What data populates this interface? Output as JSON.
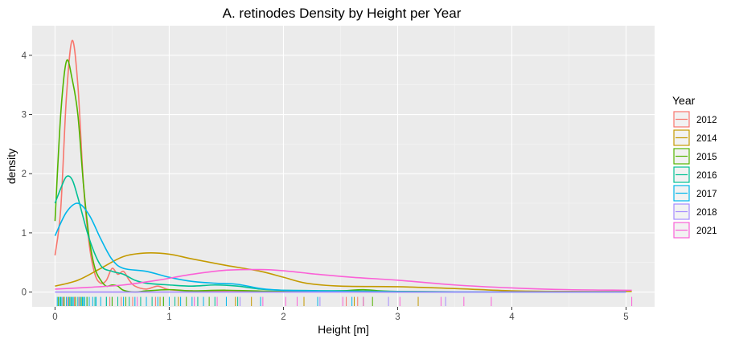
{
  "chart_data": {
    "type": "line",
    "title": "A. retinodes Density by Height per Year",
    "xlabel": "Height [m]",
    "ylabel": "density",
    "xlim": [
      -0.2,
      5.25
    ],
    "ylim": [
      -0.25,
      4.5
    ],
    "x_ticks": [
      0,
      1,
      2,
      3,
      4,
      5
    ],
    "y_ticks": [
      0,
      1,
      2,
      3,
      4
    ],
    "x_tick_labels": [
      "0",
      "1",
      "2",
      "3",
      "4",
      "5"
    ],
    "y_tick_labels": [
      "0",
      "1",
      "2",
      "3",
      "4"
    ],
    "grid": true,
    "legend": {
      "title": "Year",
      "placement": "right"
    },
    "series": [
      {
        "name": "2012",
        "color": "#F8766D",
        "points": [
          [
            0.0,
            0.62
          ],
          [
            0.05,
            1.4
          ],
          [
            0.1,
            3.3
          ],
          [
            0.15,
            4.25
          ],
          [
            0.2,
            3.5
          ],
          [
            0.25,
            1.8
          ],
          [
            0.3,
            0.8
          ],
          [
            0.35,
            0.3
          ],
          [
            0.4,
            0.15
          ],
          [
            0.45,
            0.2
          ],
          [
            0.5,
            0.4
          ],
          [
            0.55,
            0.3
          ],
          [
            0.6,
            0.35
          ],
          [
            0.65,
            0.2
          ],
          [
            0.7,
            0.1
          ],
          [
            0.8,
            0.05
          ],
          [
            0.9,
            0.1
          ],
          [
            1.0,
            0.04
          ],
          [
            1.2,
            0.02
          ],
          [
            1.5,
            0.01
          ],
          [
            2.0,
            0.01
          ],
          [
            3.0,
            0.0
          ],
          [
            4.0,
            0.0
          ],
          [
            5.0,
            0.0
          ]
        ]
      },
      {
        "name": "2014",
        "color": "#C49A00",
        "points": [
          [
            0.0,
            0.1
          ],
          [
            0.2,
            0.2
          ],
          [
            0.4,
            0.4
          ],
          [
            0.6,
            0.6
          ],
          [
            0.8,
            0.66
          ],
          [
            1.0,
            0.64
          ],
          [
            1.2,
            0.56
          ],
          [
            1.5,
            0.45
          ],
          [
            1.8,
            0.35
          ],
          [
            2.0,
            0.25
          ],
          [
            2.2,
            0.15
          ],
          [
            2.5,
            0.1
          ],
          [
            3.0,
            0.09
          ],
          [
            3.5,
            0.06
          ],
          [
            4.0,
            0.02
          ],
          [
            4.5,
            0.01
          ],
          [
            5.05,
            0.01
          ]
        ]
      },
      {
        "name": "2015",
        "color": "#53B400",
        "points": [
          [
            0.0,
            1.2
          ],
          [
            0.05,
            3.0
          ],
          [
            0.1,
            3.9
          ],
          [
            0.15,
            3.6
          ],
          [
            0.2,
            3.0
          ],
          [
            0.25,
            1.8
          ],
          [
            0.3,
            0.9
          ],
          [
            0.35,
            0.4
          ],
          [
            0.4,
            0.2
          ],
          [
            0.45,
            0.1
          ],
          [
            0.5,
            0.12
          ],
          [
            0.55,
            0.1
          ],
          [
            0.6,
            0.03
          ],
          [
            0.7,
            0.0
          ],
          [
            0.8,
            0.02
          ],
          [
            1.0,
            0.04
          ],
          [
            1.2,
            0.02
          ],
          [
            1.5,
            0.03
          ],
          [
            2.0,
            0.01
          ],
          [
            2.5,
            0.02
          ],
          [
            2.7,
            0.04
          ],
          [
            3.0,
            0.01
          ],
          [
            4.0,
            0.0
          ],
          [
            5.0,
            0.0
          ]
        ]
      },
      {
        "name": "2016",
        "color": "#00C094",
        "points": [
          [
            0.0,
            1.5
          ],
          [
            0.05,
            1.75
          ],
          [
            0.1,
            1.95
          ],
          [
            0.15,
            1.9
          ],
          [
            0.2,
            1.6
          ],
          [
            0.3,
            0.9
          ],
          [
            0.4,
            0.45
          ],
          [
            0.5,
            0.35
          ],
          [
            0.6,
            0.3
          ],
          [
            0.7,
            0.2
          ],
          [
            0.8,
            0.15
          ],
          [
            1.0,
            0.12
          ],
          [
            1.2,
            0.1
          ],
          [
            1.4,
            0.12
          ],
          [
            1.6,
            0.1
          ],
          [
            1.8,
            0.05
          ],
          [
            2.0,
            0.03
          ],
          [
            2.5,
            0.02
          ],
          [
            3.0,
            0.01
          ],
          [
            4.0,
            0.0
          ],
          [
            5.0,
            0.0
          ]
        ]
      },
      {
        "name": "2017",
        "color": "#00B6EB",
        "points": [
          [
            0.0,
            0.95
          ],
          [
            0.1,
            1.35
          ],
          [
            0.2,
            1.5
          ],
          [
            0.3,
            1.3
          ],
          [
            0.4,
            0.9
          ],
          [
            0.5,
            0.55
          ],
          [
            0.6,
            0.4
          ],
          [
            0.8,
            0.35
          ],
          [
            1.0,
            0.25
          ],
          [
            1.2,
            0.18
          ],
          [
            1.4,
            0.15
          ],
          [
            1.6,
            0.13
          ],
          [
            1.8,
            0.06
          ],
          [
            2.0,
            0.03
          ],
          [
            2.5,
            0.01
          ],
          [
            3.0,
            0.0
          ],
          [
            4.0,
            0.0
          ],
          [
            5.0,
            0.0
          ]
        ]
      },
      {
        "name": "2018",
        "color": "#A58AFF",
        "points": [
          [
            0.0,
            0.0
          ],
          [
            1.0,
            0.0
          ],
          [
            2.0,
            0.0
          ],
          [
            3.0,
            0.0
          ],
          [
            4.0,
            0.0
          ],
          [
            5.0,
            0.0
          ]
        ]
      },
      {
        "name": "2021",
        "color": "#FB61D7",
        "points": [
          [
            0.0,
            0.05
          ],
          [
            0.3,
            0.08
          ],
          [
            0.6,
            0.12
          ],
          [
            0.9,
            0.2
          ],
          [
            1.2,
            0.3
          ],
          [
            1.5,
            0.37
          ],
          [
            1.8,
            0.38
          ],
          [
            2.0,
            0.36
          ],
          [
            2.3,
            0.3
          ],
          [
            2.6,
            0.25
          ],
          [
            3.0,
            0.2
          ],
          [
            3.5,
            0.12
          ],
          [
            4.0,
            0.07
          ],
          [
            4.5,
            0.04
          ],
          [
            5.05,
            0.03
          ]
        ]
      }
    ],
    "rug": [
      {
        "series": "2017",
        "x": [
          0.02,
          0.04,
          0.06,
          0.08,
          0.1,
          0.12,
          0.14,
          0.16,
          0.18,
          0.2,
          0.22,
          0.24,
          0.26,
          0.28,
          0.3,
          0.33,
          0.36,
          0.4,
          0.45,
          0.5,
          0.55,
          0.6,
          0.7,
          0.8,
          0.9,
          1.0,
          1.1,
          1.2,
          1.3,
          1.5,
          1.8,
          2.3,
          2.6
        ]
      },
      {
        "series": "2016",
        "x": [
          0.05,
          0.15,
          0.25,
          0.35,
          0.45,
          0.55,
          0.65,
          0.75,
          0.85,
          0.95,
          1.05,
          1.25,
          1.4,
          1.6
        ]
      },
      {
        "series": "2015",
        "x": [
          0.03,
          0.08,
          0.13,
          0.18,
          0.23,
          0.28,
          0.5,
          0.62,
          0.95,
          1.15,
          1.35,
          2.7,
          2.78
        ]
      },
      {
        "series": "2012",
        "x": [
          0.07,
          0.11,
          0.17,
          0.21,
          0.48,
          0.58,
          0.68,
          0.88,
          2.55,
          2.65
        ]
      },
      {
        "series": "2014",
        "x": [
          0.92,
          1.08,
          1.58,
          1.72,
          2.18,
          2.62,
          3.18
        ]
      },
      {
        "series": "2021",
        "x": [
          0.72,
          1.22,
          1.42,
          1.82,
          2.02,
          2.12,
          2.52,
          2.7,
          3.02,
          3.38,
          3.58,
          3.82,
          5.05
        ]
      },
      {
        "series": "2018",
        "x": [
          1.62,
          2.32,
          2.92,
          3.42
        ]
      }
    ]
  }
}
